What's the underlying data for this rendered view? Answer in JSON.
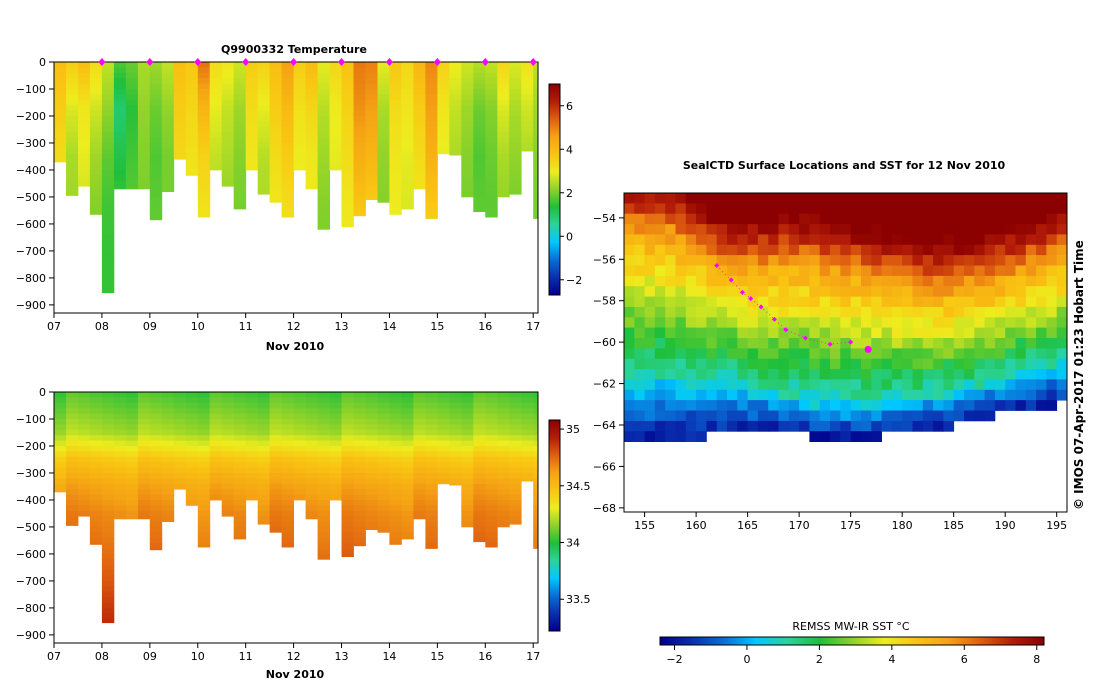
{
  "colors": {
    "ramp": [
      "#00008b",
      "#0a2fb0",
      "#0a6ed6",
      "#00c8ff",
      "#2bd39b",
      "#1fbf3a",
      "#8cd22a",
      "#eded1e",
      "#f9c412",
      "#f5a314",
      "#e06010",
      "#b41d08",
      "#8b0000"
    ],
    "marker": "#ff00ff",
    "axis": "#000000",
    "land": "#ffffff"
  },
  "chart_data": [
    {
      "id": "temperature-section",
      "type": "heatmap",
      "title": "Q9900332  Temperature",
      "xlabel": "Nov 2010",
      "ylabel": "",
      "xticks": [
        "07",
        "08",
        "09",
        "10",
        "11",
        "12",
        "13",
        "14",
        "15",
        "16",
        "17"
      ],
      "xlim": [
        7,
        17.1
      ],
      "yticks": [
        "0",
        "−100",
        "−200",
        "−300",
        "−400",
        "−500",
        "−600",
        "−700",
        "−800",
        "−900"
      ],
      "ylim": [
        -930,
        0
      ],
      "colorbar_ticks": [
        "6",
        "4",
        "2",
        "0",
        "−2"
      ],
      "colorbar_range": [
        -2.7,
        7
      ],
      "surface_markers_days": [
        8,
        9,
        10,
        11,
        12,
        13,
        14,
        15,
        16,
        17
      ],
      "profiles": [
        {
          "x": 7.0,
          "depth": 370,
          "v": [
            3.9,
            3.6,
            3.3,
            3.1,
            3.0
          ]
        },
        {
          "x": 7.25,
          "depth": 495,
          "v": [
            3.6,
            2.8,
            2.4,
            2.3,
            2.2
          ]
        },
        {
          "x": 7.5,
          "depth": 460,
          "v": [
            3.9,
            3.1,
            2.9,
            2.7,
            2.6
          ]
        },
        {
          "x": 7.75,
          "depth": 565,
          "v": [
            3.3,
            2.7,
            2.3,
            2.1,
            2.0
          ]
        },
        {
          "x": 8.0,
          "depth": 855,
          "v": [
            2.6,
            2.2,
            1.8,
            1.6,
            1.5
          ]
        },
        {
          "x": 8.25,
          "depth": 470,
          "v": [
            1.7,
            0.9,
            1.2,
            1.6,
            1.8
          ]
        },
        {
          "x": 8.5,
          "depth": 470,
          "v": [
            1.9,
            1.4,
            1.6,
            1.8,
            1.9
          ]
        },
        {
          "x": 8.75,
          "depth": 470,
          "v": [
            2.4,
            2.2,
            2.1,
            2.0,
            2.0
          ]
        },
        {
          "x": 9.0,
          "depth": 585,
          "v": [
            2.3,
            1.9,
            1.7,
            1.8,
            1.9
          ]
        },
        {
          "x": 9.25,
          "depth": 480,
          "v": [
            2.6,
            2.2,
            2.0,
            2.0,
            2.1
          ]
        },
        {
          "x": 9.5,
          "depth": 360,
          "v": [
            3.9,
            3.6,
            3.4,
            3.2,
            3.1
          ]
        },
        {
          "x": 9.75,
          "depth": 420,
          "v": [
            3.7,
            3.4,
            3.2,
            3.0,
            3.0
          ]
        },
        {
          "x": 10.0,
          "depth": 575,
          "v": [
            5.2,
            4.1,
            3.5,
            3.2,
            3.0
          ]
        },
        {
          "x": 10.25,
          "depth": 400,
          "v": [
            3.3,
            2.9,
            2.6,
            2.4,
            2.3
          ]
        },
        {
          "x": 10.5,
          "depth": 460,
          "v": [
            3.1,
            2.6,
            2.4,
            2.2,
            2.2
          ]
        },
        {
          "x": 10.75,
          "depth": 545,
          "v": [
            2.7,
            2.3,
            2.1,
            2.0,
            2.0
          ]
        },
        {
          "x": 11.0,
          "depth": 400,
          "v": [
            3.6,
            3.3,
            3.1,
            3.0,
            2.9
          ]
        },
        {
          "x": 11.25,
          "depth": 490,
          "v": [
            3.5,
            2.9,
            2.5,
            2.4,
            2.3
          ]
        },
        {
          "x": 11.5,
          "depth": 520,
          "v": [
            3.9,
            3.6,
            3.3,
            3.1,
            3.0
          ]
        },
        {
          "x": 11.75,
          "depth": 575,
          "v": [
            4.6,
            4.0,
            3.6,
            3.3,
            3.1
          ]
        },
        {
          "x": 12.0,
          "depth": 400,
          "v": [
            3.6,
            3.2,
            3.0,
            2.9,
            2.8
          ]
        },
        {
          "x": 12.25,
          "depth": 470,
          "v": [
            4.0,
            3.4,
            3.1,
            3.0,
            2.9
          ]
        },
        {
          "x": 12.5,
          "depth": 620,
          "v": [
            2.9,
            2.5,
            2.3,
            2.1,
            2.0
          ]
        },
        {
          "x": 12.75,
          "depth": 400,
          "v": [
            3.4,
            3.0,
            2.9,
            2.8,
            2.7
          ]
        },
        {
          "x": 13.0,
          "depth": 610,
          "v": [
            3.8,
            3.5,
            3.3,
            3.1,
            3.0
          ]
        },
        {
          "x": 13.25,
          "depth": 570,
          "v": [
            5.1,
            4.8,
            4.3,
            3.8,
            3.3
          ]
        },
        {
          "x": 13.5,
          "depth": 510,
          "v": [
            5.0,
            4.6,
            4.1,
            3.6,
            3.2
          ]
        },
        {
          "x": 13.75,
          "depth": 520,
          "v": [
            2.9,
            2.4,
            2.2,
            2.1,
            2.0
          ]
        },
        {
          "x": 14.0,
          "depth": 565,
          "v": [
            3.7,
            3.3,
            3.1,
            3.0,
            2.9
          ]
        },
        {
          "x": 14.25,
          "depth": 545,
          "v": [
            3.4,
            3.1,
            2.9,
            2.8,
            2.8
          ]
        },
        {
          "x": 14.5,
          "depth": 470,
          "v": [
            4.1,
            3.6,
            3.3,
            3.1,
            3.0
          ]
        },
        {
          "x": 14.75,
          "depth": 580,
          "v": [
            4.9,
            4.6,
            4.2,
            3.7,
            3.3
          ]
        },
        {
          "x": 15.0,
          "depth": 340,
          "v": [
            3.5,
            3.1,
            2.9,
            2.8,
            2.8
          ]
        },
        {
          "x": 15.25,
          "depth": 345,
          "v": [
            3.0,
            2.6,
            2.4,
            2.3,
            2.3
          ]
        },
        {
          "x": 15.5,
          "depth": 500,
          "v": [
            2.7,
            2.3,
            2.1,
            2.0,
            2.0
          ]
        },
        {
          "x": 15.75,
          "depth": 555,
          "v": [
            2.5,
            1.9,
            1.7,
            1.8,
            1.9
          ]
        },
        {
          "x": 16.0,
          "depth": 575,
          "v": [
            2.6,
            2.1,
            1.9,
            1.8,
            1.9
          ]
        },
        {
          "x": 16.25,
          "depth": 500,
          "v": [
            3.4,
            2.8,
            2.4,
            2.2,
            2.1
          ]
        },
        {
          "x": 16.5,
          "depth": 490,
          "v": [
            2.8,
            2.4,
            2.2,
            2.0,
            2.0
          ]
        },
        {
          "x": 16.75,
          "depth": 330,
          "v": [
            3.2,
            2.7,
            2.4,
            2.2,
            2.2
          ]
        },
        {
          "x": 17.0,
          "depth": 580,
          "v": [
            2.6,
            2.3,
            2.1,
            2.0,
            2.0
          ]
        }
      ]
    },
    {
      "id": "salinity-section",
      "type": "heatmap",
      "title": "",
      "xlabel": "Nov 2010",
      "ylabel": "",
      "xticks": [
        "07",
        "08",
        "09",
        "10",
        "11",
        "12",
        "13",
        "14",
        "15",
        "16",
        "17"
      ],
      "xlim": [
        7,
        17.1
      ],
      "yticks": [
        "0",
        "−100",
        "−200",
        "−300",
        "−400",
        "−500",
        "−600",
        "−700",
        "−800",
        "−900"
      ],
      "ylim": [
        -930,
        0
      ],
      "colorbar_ticks": [
        "35",
        "34.5",
        "34",
        "33.5"
      ],
      "colorbar_range": [
        33.22,
        35.08
      ],
      "profiles_from": "temperature-section",
      "salinity_profile": {
        "depths": [
          0,
          150,
          250,
          350,
          450,
          550,
          700,
          850
        ],
        "values": [
          34.05,
          34.2,
          34.45,
          34.6,
          34.68,
          34.72,
          34.8,
          34.9
        ]
      }
    },
    {
      "id": "sst-map",
      "type": "heatmap",
      "title": "SealCTD Surface Locations and SST for 12 Nov 2010",
      "xlabel": "",
      "ylabel": "",
      "xticks": [
        "155",
        "160",
        "165",
        "170",
        "175",
        "180",
        "185",
        "190",
        "195"
      ],
      "xlim": [
        153,
        196
      ],
      "yticks": [
        "−54",
        "−56",
        "−58",
        "−60",
        "−62",
        "−64",
        "−66",
        "−68"
      ],
      "ylim": [
        -68.2,
        -52.8
      ],
      "colorbar_title": "REMSS MW-IR SST °C",
      "colorbar_ticks": [
        "−2",
        "0",
        "2",
        "4",
        "6",
        "8"
      ],
      "colorbar_range": [
        -2.4,
        8.2
      ],
      "ice_edge": {
        "lon": [
          153,
          158,
          163,
          167,
          172,
          176,
          180,
          185,
          188,
          192,
          196
        ],
        "lat": [
          -64.9,
          -64.6,
          -64.5,
          -64.3,
          -64.6,
          -64.6,
          -64.5,
          -64.0,
          -63.6,
          -63.2,
          -63.0
        ]
      },
      "cold_front": {
        "lon": [
          153,
          158,
          163,
          168,
          173,
          178,
          183,
          188,
          193,
          196
        ],
        "lat": [
          -62.0,
          -61.9,
          -62.0,
          -62.6,
          -63.0,
          -62.9,
          -62.6,
          -62.1,
          -61.4,
          -61.0
        ]
      },
      "warm_front": {
        "lon": [
          153,
          157,
          160,
          162.5,
          165,
          170,
          175,
          180,
          185,
          190,
          196
        ],
        "lat": [
          -54.8,
          -55.0,
          -55.8,
          -56.5,
          -56.7,
          -56.5,
          -57.0,
          -57.6,
          -57.8,
          -57.1,
          -56.2
        ]
      },
      "track_dots": [
        {
          "lon": 162.0,
          "lat": -56.3
        },
        {
          "lon": 163.4,
          "lat": -57.0
        },
        {
          "lon": 164.5,
          "lat": -57.6
        },
        {
          "lon": 165.3,
          "lat": -57.9
        },
        {
          "lon": 166.3,
          "lat": -58.3
        },
        {
          "lon": 167.6,
          "lat": -58.9
        },
        {
          "lon": 168.7,
          "lat": -59.4
        },
        {
          "lon": 170.6,
          "lat": -59.8
        },
        {
          "lon": 173.0,
          "lat": -60.1
        },
        {
          "lon": 175.0,
          "lat": -60.0
        }
      ],
      "current_position": {
        "lon": 176.7,
        "lat": -60.35
      }
    }
  ],
  "copyright": "© IMOS 07-Apr-2017 01:23 Hobart Time"
}
